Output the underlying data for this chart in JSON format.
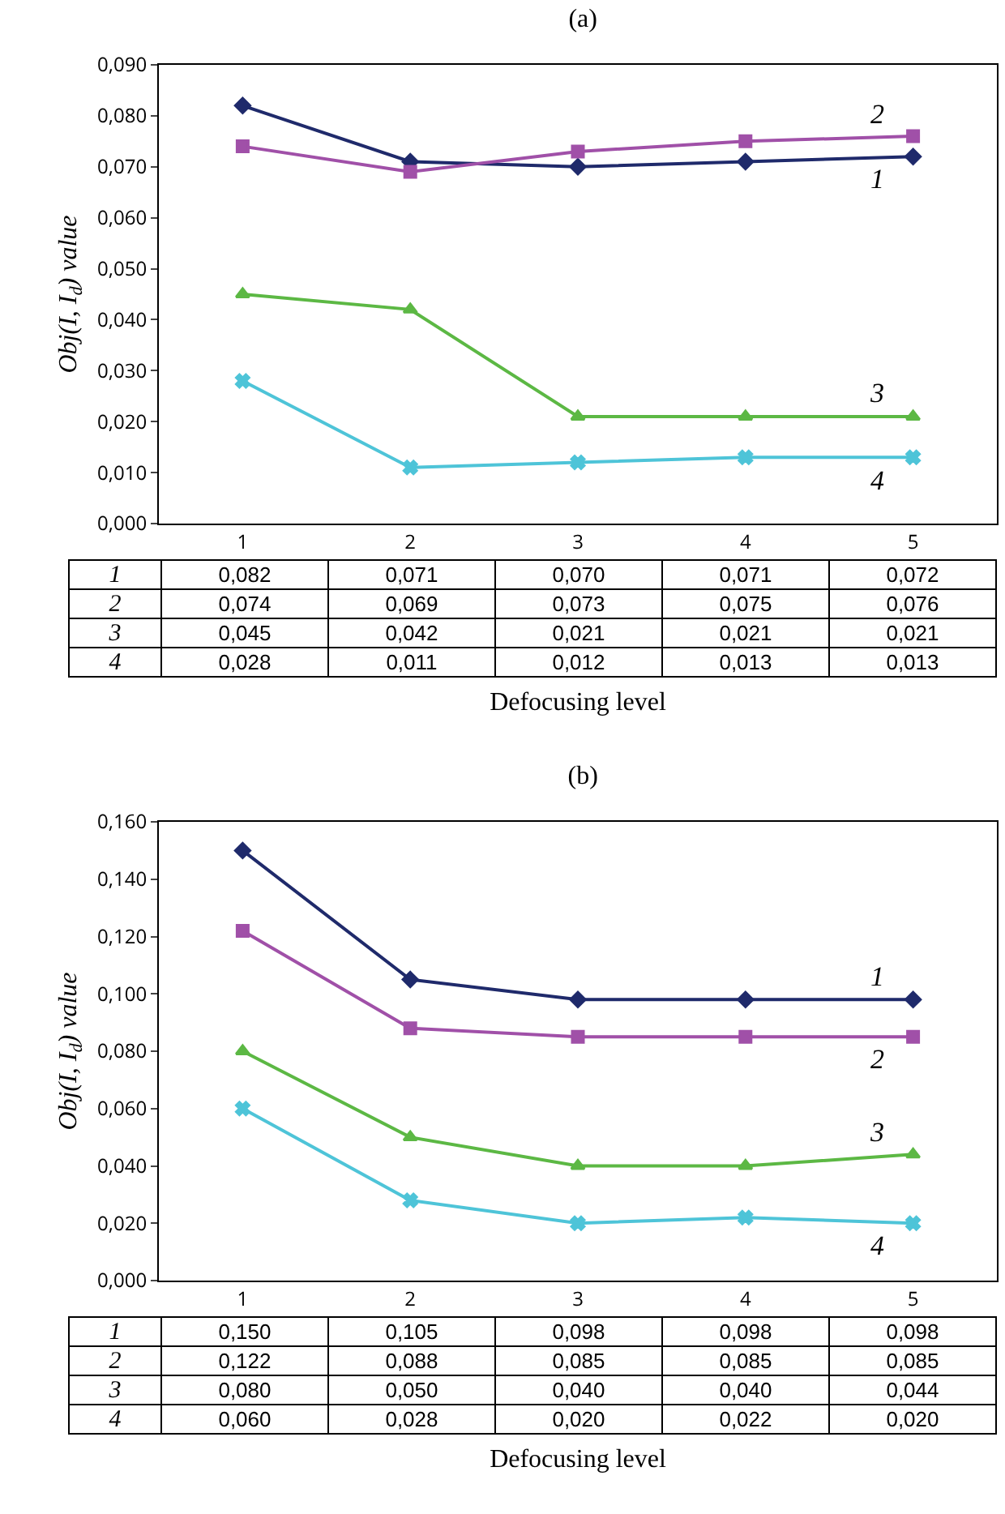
{
  "chart_data": [
    {
      "type": "line",
      "title": "(a)",
      "xlabel": "Defocusing level",
      "ylabel": "Obj(I, I$_{d}$) value",
      "categories": [
        "1",
        "2",
        "3",
        "4",
        "5"
      ],
      "ylim": [
        0,
        0.09
      ],
      "yticks": [
        {
          "value": 0,
          "label": "0,000"
        },
        {
          "value": 0.01,
          "label": "0,010"
        },
        {
          "value": 0.02,
          "label": "0,020"
        },
        {
          "value": 0.03,
          "label": "0,030"
        },
        {
          "value": 0.04,
          "label": "0,040"
        },
        {
          "value": 0.05,
          "label": "0,050"
        },
        {
          "value": 0.06,
          "label": "0,060"
        },
        {
          "value": 0.07,
          "label": "0,070"
        },
        {
          "value": 0.08,
          "label": "0,080"
        },
        {
          "value": 0.09,
          "label": "0,090"
        }
      ],
      "grid": false,
      "legend": false,
      "line_style": "solid",
      "series": [
        {
          "name": "1",
          "color": "#1f2a6b",
          "marker": "diamond",
          "values": [
            0.082,
            0.071,
            0.07,
            0.071,
            0.072
          ],
          "value_labels": [
            "0,082",
            "0,071",
            "0,070",
            "0,071",
            "0,072"
          ]
        },
        {
          "name": "2",
          "color": "#a050a8",
          "marker": "square",
          "values": [
            0.074,
            0.069,
            0.073,
            0.075,
            0.076
          ],
          "value_labels": [
            "0,074",
            "0,069",
            "0,073",
            "0,075",
            "0,076"
          ]
        },
        {
          "name": "3",
          "color": "#5cb844",
          "marker": "triangle",
          "values": [
            0.045,
            0.042,
            0.021,
            0.021,
            0.021
          ],
          "value_labels": [
            "0,045",
            "0,042",
            "0,021",
            "0,021",
            "0,021"
          ]
        },
        {
          "name": "4",
          "color": "#4ec4d8",
          "marker": "cross",
          "values": [
            0.028,
            0.011,
            0.012,
            0.013,
            0.013
          ],
          "value_labels": [
            "0,028",
            "0,011",
            "0,012",
            "0,013",
            "0,013"
          ]
        }
      ]
    },
    {
      "type": "line",
      "title": "(b)",
      "xlabel": "Defocusing level",
      "ylabel": "Obj(I, I$_{d}$) value",
      "categories": [
        "1",
        "2",
        "3",
        "4",
        "5"
      ],
      "ylim": [
        0,
        0.16
      ],
      "yticks": [
        {
          "value": 0,
          "label": "0,000"
        },
        {
          "value": 0.02,
          "label": "0,020"
        },
        {
          "value": 0.04,
          "label": "0,040"
        },
        {
          "value": 0.06,
          "label": "0,060"
        },
        {
          "value": 0.08,
          "label": "0,080"
        },
        {
          "value": 0.1,
          "label": "0,100"
        },
        {
          "value": 0.12,
          "label": "0,120"
        },
        {
          "value": 0.14,
          "label": "0,140"
        },
        {
          "value": 0.16,
          "label": "0,160"
        }
      ],
      "grid": false,
      "legend": false,
      "line_style": "solid",
      "series": [
        {
          "name": "1",
          "color": "#1f2a6b",
          "marker": "diamond",
          "values": [
            0.15,
            0.105,
            0.098,
            0.098,
            0.098
          ],
          "value_labels": [
            "0,150",
            "0,105",
            "0,098",
            "0,098",
            "0,098"
          ]
        },
        {
          "name": "2",
          "color": "#a050a8",
          "marker": "square",
          "values": [
            0.122,
            0.088,
            0.085,
            0.085,
            0.085
          ],
          "value_labels": [
            "0,122",
            "0,088",
            "0,085",
            "0,085",
            "0,085"
          ]
        },
        {
          "name": "3",
          "color": "#5cb844",
          "marker": "triangle",
          "values": [
            0.08,
            0.05,
            0.04,
            0.04,
            0.044
          ],
          "value_labels": [
            "0,080",
            "0,050",
            "0,040",
            "0,040",
            "0,044"
          ]
        },
        {
          "name": "4",
          "color": "#4ec4d8",
          "marker": "cross",
          "values": [
            0.06,
            0.028,
            0.02,
            0.022,
            0.02
          ],
          "value_labels": [
            "0,060",
            "0,028",
            "0,020",
            "0,022",
            "0,020"
          ]
        }
      ]
    }
  ]
}
